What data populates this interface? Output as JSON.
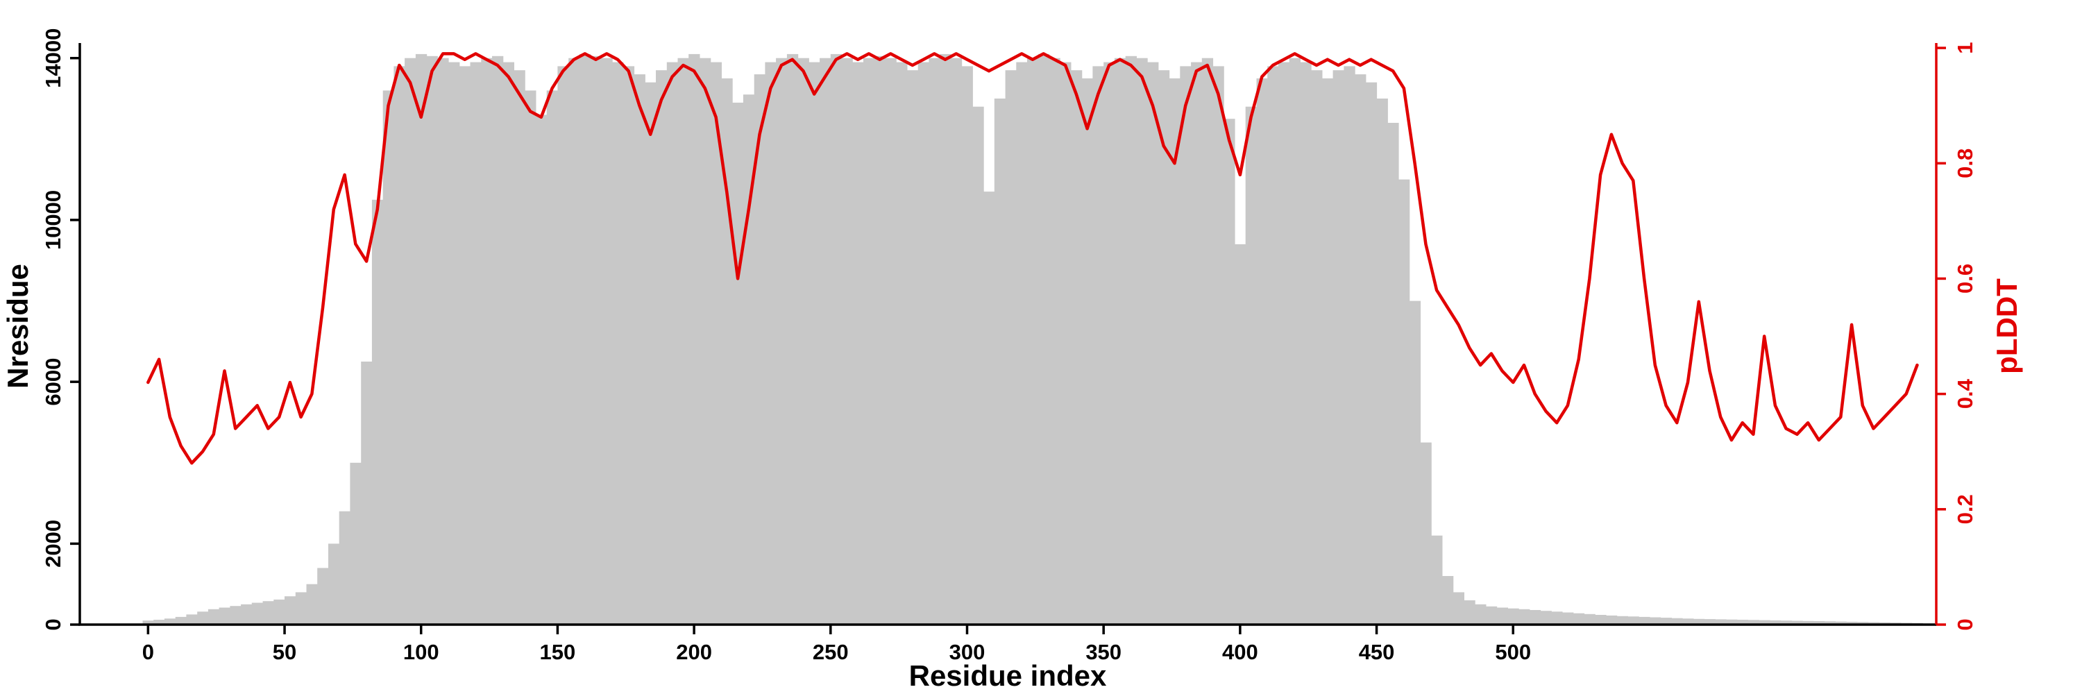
{
  "chart_data": {
    "type": "bar+line",
    "title": "",
    "xlabel": "Residue index",
    "ylabel_left": "Nresidue",
    "ylabel_right": "pLDDT",
    "xlim": [
      -25,
      655
    ],
    "ylim_left": [
      0,
      14750
    ],
    "ylim_right": [
      0,
      1.035
    ],
    "xticks": [
      0,
      50,
      100,
      150,
      200,
      250,
      300,
      350,
      400,
      450,
      500
    ],
    "yticks_left": [
      0,
      2000,
      6000,
      10000,
      14000
    ],
    "yticks_right": [
      0,
      0.2,
      0.4,
      0.6,
      0.8,
      1
    ],
    "grid": false,
    "legend": "none",
    "colors": {
      "bars": "#c8c8c8",
      "line": "#e10000",
      "axis_left": "#000000",
      "axis_bottom": "#000000",
      "axis_right": "#e10000"
    },
    "x": [
      0,
      4,
      8,
      12,
      16,
      20,
      24,
      28,
      32,
      36,
      40,
      44,
      48,
      52,
      56,
      60,
      64,
      68,
      72,
      76,
      80,
      84,
      88,
      92,
      96,
      100,
      104,
      108,
      112,
      116,
      120,
      124,
      128,
      132,
      136,
      140,
      144,
      148,
      152,
      156,
      160,
      164,
      168,
      172,
      176,
      180,
      184,
      188,
      192,
      196,
      200,
      204,
      208,
      212,
      216,
      220,
      224,
      228,
      232,
      236,
      240,
      244,
      248,
      252,
      256,
      260,
      264,
      268,
      272,
      276,
      280,
      284,
      288,
      292,
      296,
      300,
      304,
      308,
      312,
      316,
      320,
      324,
      328,
      332,
      336,
      340,
      344,
      348,
      352,
      356,
      360,
      364,
      368,
      372,
      376,
      380,
      384,
      388,
      392,
      396,
      400,
      404,
      408,
      412,
      416,
      420,
      424,
      428,
      432,
      436,
      440,
      444,
      448,
      452,
      456,
      460,
      464,
      468,
      472,
      476,
      480,
      484,
      488,
      492,
      496,
      500,
      504,
      508,
      512,
      516,
      520,
      524,
      528,
      532,
      536,
      540,
      544,
      548,
      552,
      556,
      560,
      564,
      568,
      572,
      576,
      580,
      584,
      588,
      592,
      596,
      600,
      604,
      608,
      612,
      616,
      620,
      624,
      628,
      632,
      636,
      640,
      644,
      648
    ],
    "series": [
      {
        "name": "Nresidue",
        "type": "bar",
        "axis": "left",
        "color": "#c8c8c8",
        "values": [
          100,
          120,
          150,
          190,
          250,
          320,
          380,
          420,
          460,
          500,
          540,
          580,
          620,
          700,
          800,
          1000,
          1400,
          2000,
          2800,
          4000,
          6500,
          10500,
          13200,
          13800,
          14000,
          14100,
          14050,
          14000,
          13900,
          13800,
          13900,
          14000,
          14050,
          13900,
          13700,
          13200,
          12600,
          13200,
          13800,
          14000,
          14100,
          14050,
          14000,
          13900,
          13800,
          13600,
          13400,
          13700,
          13900,
          14000,
          14100,
          14000,
          13900,
          13500,
          12900,
          13100,
          13600,
          13900,
          14000,
          14100,
          14000,
          13900,
          14000,
          14100,
          14000,
          13900,
          14000,
          14050,
          14000,
          13900,
          13700,
          13900,
          14000,
          14100,
          14000,
          13800,
          12800,
          10700,
          13000,
          13700,
          13900,
          14000,
          14100,
          14000,
          13900,
          13700,
          13500,
          13800,
          13900,
          14000,
          14050,
          14000,
          13900,
          13700,
          13500,
          13800,
          13900,
          14000,
          13800,
          12500,
          9400,
          12800,
          13500,
          13800,
          13900,
          14000,
          13900,
          13700,
          13500,
          13700,
          13800,
          13600,
          13400,
          13000,
          12400,
          11000,
          8000,
          4500,
          2200,
          1200,
          800,
          600,
          500,
          450,
          420,
          400,
          380,
          360,
          340,
          320,
          300,
          280,
          260,
          240,
          225,
          210,
          200,
          190,
          180,
          170,
          160,
          150,
          140,
          135,
          130,
          125,
          120,
          115,
          110,
          105,
          100,
          95,
          90,
          85,
          80,
          75,
          70,
          65,
          60,
          55,
          50,
          45,
          40
        ]
      },
      {
        "name": "pLDDT",
        "type": "line",
        "axis": "right",
        "color": "#e10000",
        "values": [
          0.42,
          0.46,
          0.36,
          0.31,
          0.28,
          0.3,
          0.33,
          0.44,
          0.34,
          0.36,
          0.38,
          0.34,
          0.36,
          0.42,
          0.36,
          0.4,
          0.55,
          0.72,
          0.78,
          0.66,
          0.63,
          0.72,
          0.9,
          0.97,
          0.94,
          0.88,
          0.96,
          0.99,
          0.99,
          0.98,
          0.99,
          0.98,
          0.97,
          0.95,
          0.92,
          0.89,
          0.88,
          0.93,
          0.96,
          0.98,
          0.99,
          0.98,
          0.99,
          0.98,
          0.96,
          0.9,
          0.85,
          0.91,
          0.95,
          0.97,
          0.96,
          0.93,
          0.88,
          0.75,
          0.6,
          0.72,
          0.85,
          0.93,
          0.97,
          0.98,
          0.96,
          0.92,
          0.95,
          0.98,
          0.99,
          0.98,
          0.99,
          0.98,
          0.99,
          0.98,
          0.97,
          0.98,
          0.99,
          0.98,
          0.99,
          0.98,
          0.97,
          0.96,
          0.97,
          0.98,
          0.99,
          0.98,
          0.99,
          0.98,
          0.97,
          0.92,
          0.86,
          0.92,
          0.97,
          0.98,
          0.97,
          0.95,
          0.9,
          0.83,
          0.8,
          0.9,
          0.96,
          0.97,
          0.92,
          0.84,
          0.78,
          0.88,
          0.95,
          0.97,
          0.98,
          0.99,
          0.98,
          0.97,
          0.98,
          0.97,
          0.98,
          0.97,
          0.98,
          0.97,
          0.96,
          0.93,
          0.8,
          0.66,
          0.58,
          0.55,
          0.52,
          0.48,
          0.45,
          0.47,
          0.44,
          0.42,
          0.45,
          0.4,
          0.37,
          0.35,
          0.38,
          0.46,
          0.6,
          0.78,
          0.85,
          0.8,
          0.77,
          0.6,
          0.45,
          0.38,
          0.35,
          0.42,
          0.56,
          0.44,
          0.36,
          0.32,
          0.35,
          0.33,
          0.5,
          0.38,
          0.34,
          0.33,
          0.35,
          0.32,
          0.34,
          0.36,
          0.52,
          0.38,
          0.34,
          0.36,
          0.38,
          0.4,
          0.45
        ]
      }
    ]
  }
}
